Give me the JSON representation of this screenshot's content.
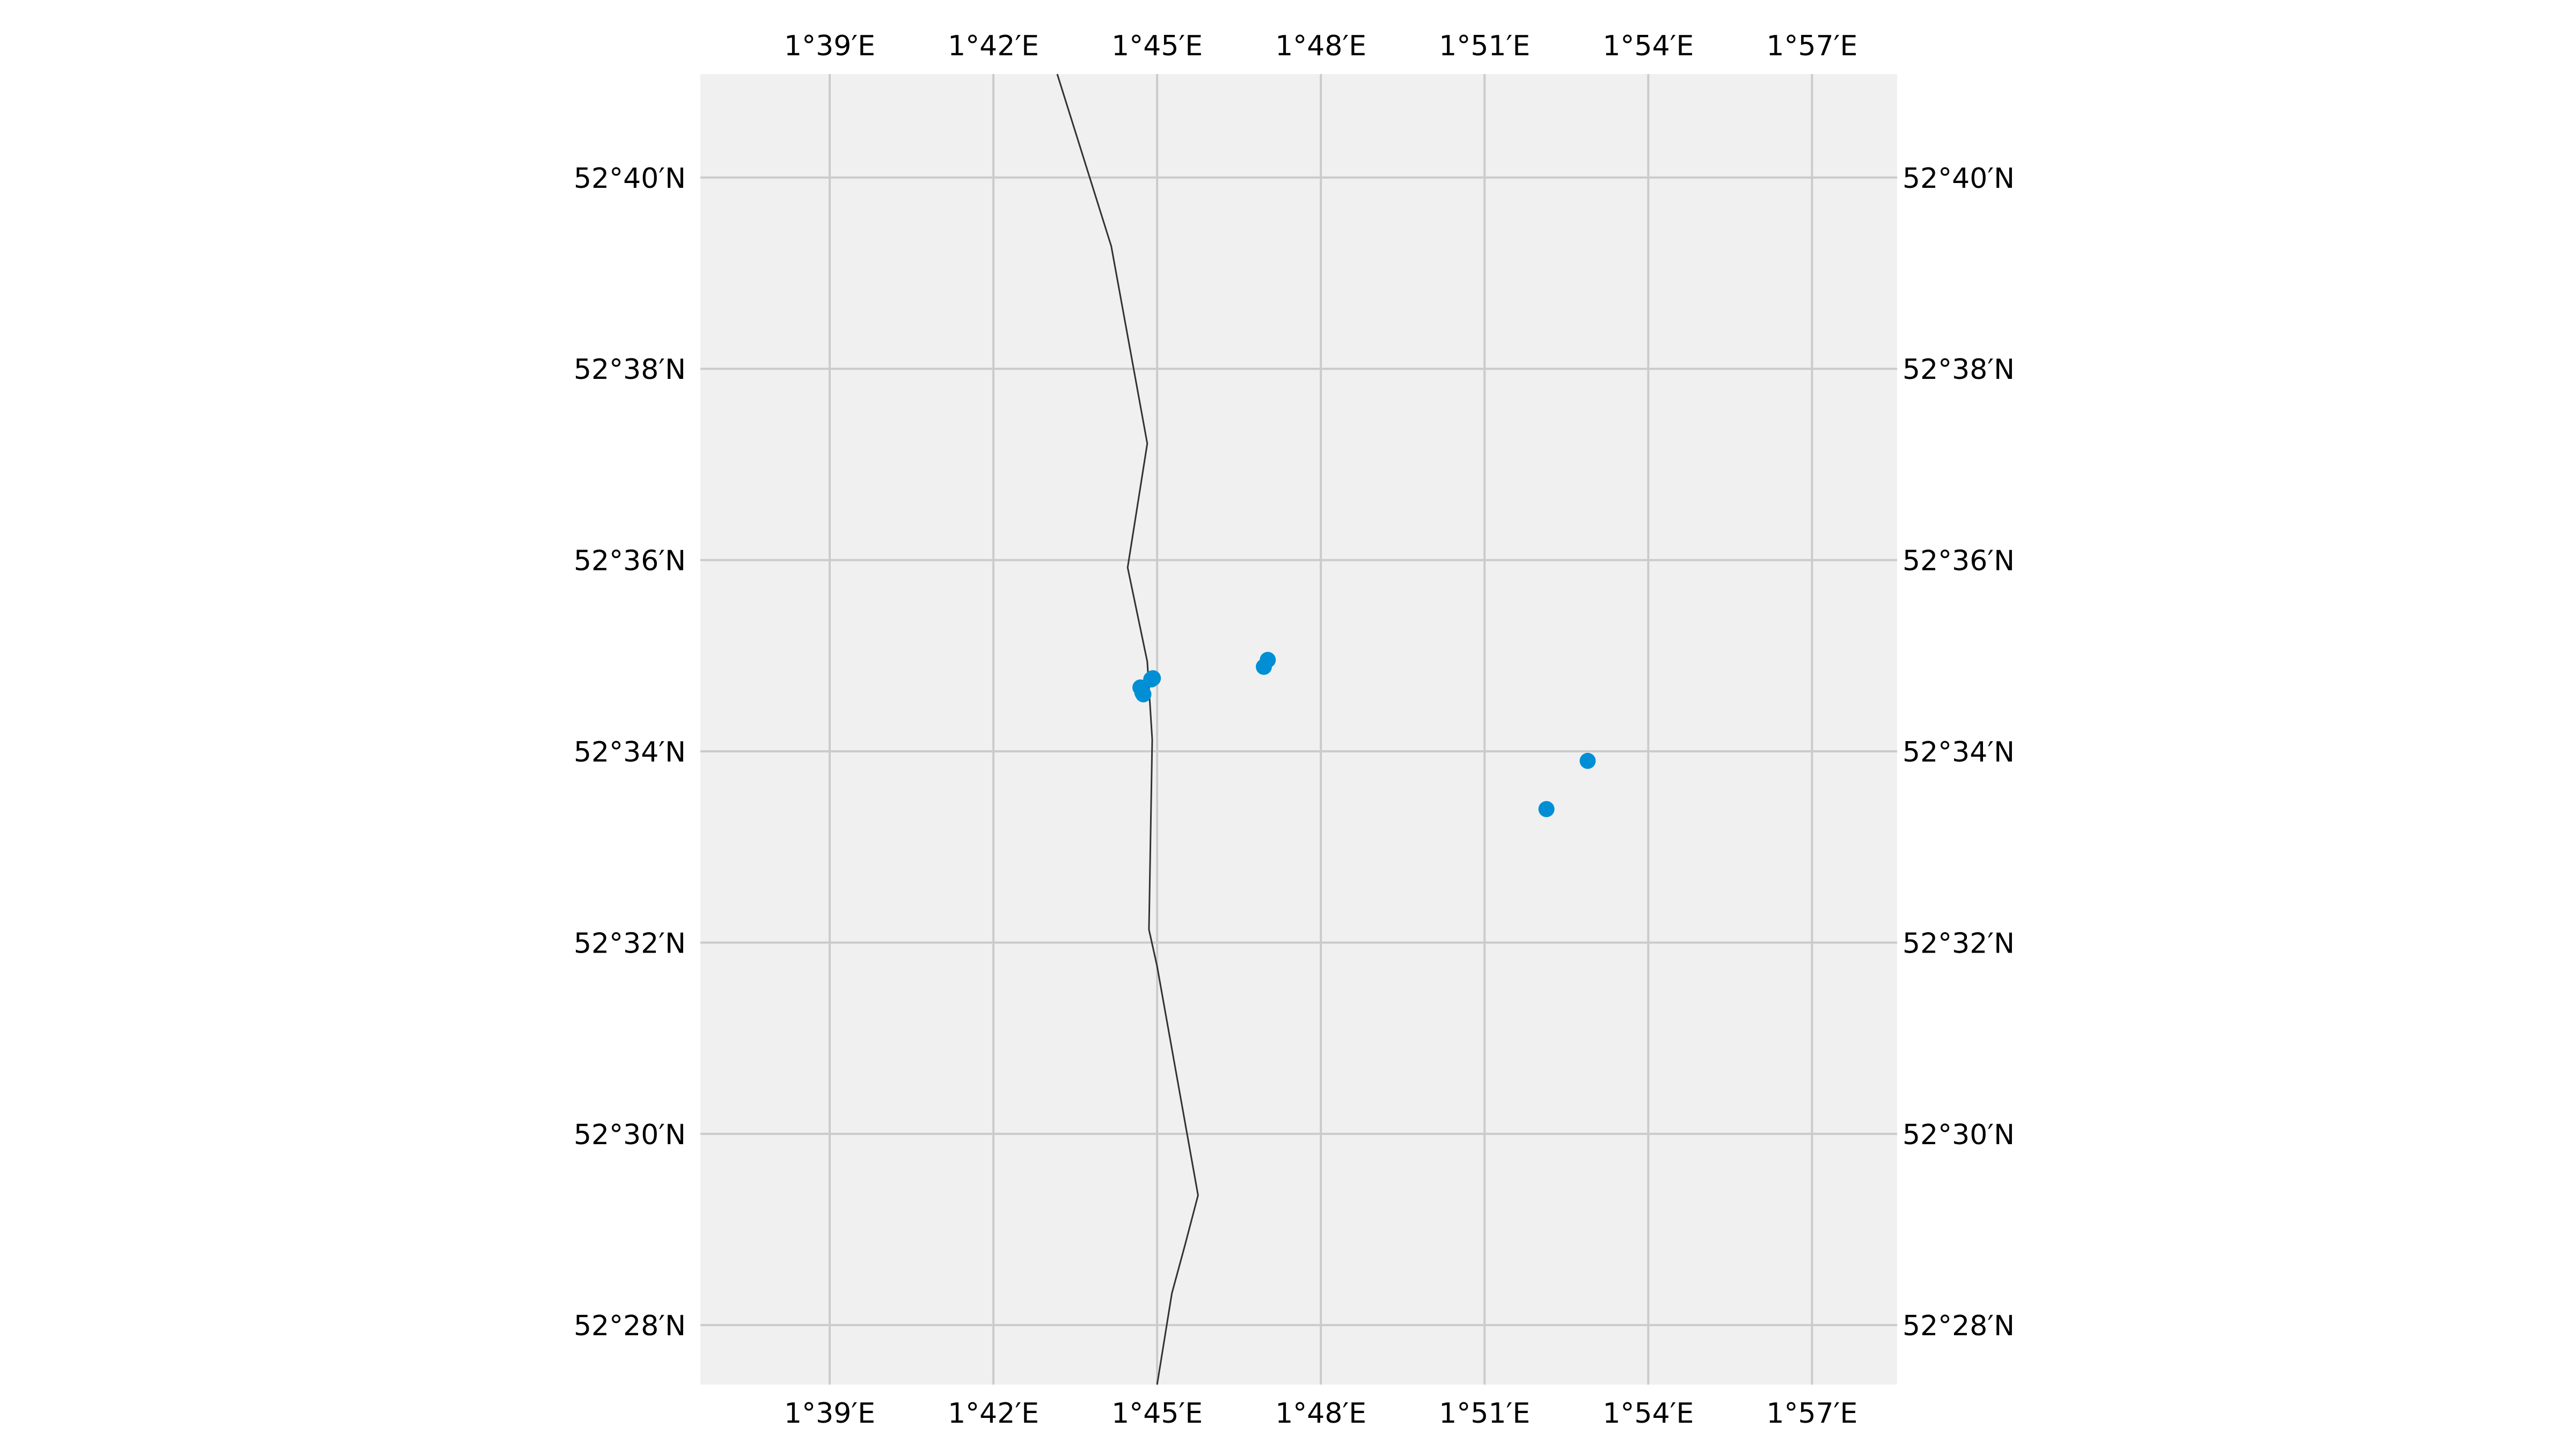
{
  "map": {
    "extent": {
      "lon_min": 1.6105,
      "lon_max": 1.976,
      "lat_min": 52.4563,
      "lat_max": 52.6847
    },
    "lon_ticks": [
      {
        "value": 1.65,
        "label": "1°39′E"
      },
      {
        "value": 1.7,
        "label": "1°42′E"
      },
      {
        "value": 1.75,
        "label": "1°45′E"
      },
      {
        "value": 1.8,
        "label": "1°48′E"
      },
      {
        "value": 1.85,
        "label": "1°51′E"
      },
      {
        "value": 1.9,
        "label": "1°54′E"
      },
      {
        "value": 1.95,
        "label": "1°57′E"
      }
    ],
    "lat_ticks": [
      {
        "value": 52.466667,
        "label": "52°28′N"
      },
      {
        "value": 52.5,
        "label": "52°30′N"
      },
      {
        "value": 52.533333,
        "label": "52°32′N"
      },
      {
        "value": 52.566667,
        "label": "52°34′N"
      },
      {
        "value": 52.6,
        "label": "52°36′N"
      },
      {
        "value": 52.633333,
        "label": "52°38′N"
      },
      {
        "value": 52.666667,
        "label": "52°40′N"
      }
    ],
    "coastline": [
      [
        1.719,
        52.6847
      ],
      [
        1.736,
        52.6547
      ],
      [
        1.747,
        52.6203
      ],
      [
        1.741,
        52.5987
      ],
      [
        1.747,
        52.5823
      ],
      [
        1.7485,
        52.5687
      ],
      [
        1.7475,
        52.5356
      ],
      [
        1.75,
        52.5292
      ],
      [
        1.7625,
        52.4893
      ],
      [
        1.7545,
        52.4796
      ],
      [
        1.7545,
        52.4804
      ],
      [
        1.755,
        52.4796
      ],
      [
        1.7545,
        52.4805
      ],
      [
        1.7585,
        52.4805
      ],
      [
        1.7585,
        52.4805
      ],
      [
        1.7545,
        52.4805
      ],
      [
        1.7625,
        52.4893
      ],
      [
        1.758,
        52.4806
      ],
      [
        1.7545,
        52.4722
      ],
      [
        1.7495,
        52.4576
      ]
    ],
    "points": [
      {
        "lon": 1.7487,
        "lat": 52.5794
      },
      {
        "lon": 1.7482,
        "lat": 52.5792
      },
      {
        "lon": 1.7449,
        "lat": 52.5778
      },
      {
        "lon": 1.7455,
        "lat": 52.5769
      },
      {
        "lon": 1.7458,
        "lat": 52.5766
      },
      {
        "lon": 1.7838,
        "lat": 52.5826
      },
      {
        "lon": 1.7826,
        "lat": 52.5814
      },
      {
        "lon": 1.8815,
        "lat": 52.565
      },
      {
        "lon": 1.8689,
        "lat": 52.5566
      }
    ],
    "colors": {
      "background": "#f0f0f0",
      "grid": "#cbcbcb",
      "coastline": "#333333",
      "points": "#008fd5",
      "tick_text": "#000000"
    }
  }
}
